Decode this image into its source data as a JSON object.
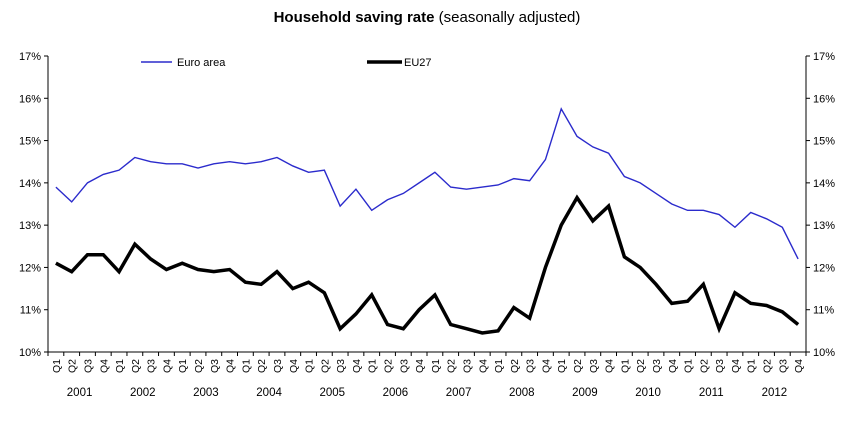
{
  "chart_data": {
    "type": "line",
    "title": "Household saving rate (seasonally adjusted)",
    "title_bold": "Household saving rate",
    "title_suffix": " (seasonally adjusted)",
    "ylim": [
      10,
      17
    ],
    "ytick_step": 1,
    "ytick_suffix": "%",
    "ytick_labels": [
      "10%",
      "11%",
      "12%",
      "13%",
      "14%",
      "15%",
      "16%",
      "17%"
    ],
    "quarters": [
      "Q1",
      "Q2",
      "Q3",
      "Q4"
    ],
    "years": [
      "2001",
      "2002",
      "2003",
      "2004",
      "2005",
      "2006",
      "2007",
      "2008",
      "2009",
      "2010",
      "2011",
      "2012"
    ],
    "grid": false,
    "legend_position": "top-inside",
    "series": [
      {
        "name": "Euro area",
        "color": "#2b2bcc",
        "width": 1.4,
        "values": [
          13.9,
          13.55,
          14.0,
          14.2,
          14.3,
          14.6,
          14.5,
          14.45,
          14.45,
          14.35,
          14.45,
          14.5,
          14.45,
          14.5,
          14.6,
          14.4,
          14.25,
          14.3,
          13.45,
          13.85,
          13.35,
          13.6,
          13.75,
          14.0,
          14.25,
          13.9,
          13.85,
          13.9,
          13.95,
          14.1,
          14.05,
          14.55,
          15.75,
          15.1,
          14.85,
          14.7,
          14.15,
          14.0,
          13.75,
          13.5,
          13.35,
          13.35,
          13.25,
          12.95,
          13.3,
          13.15,
          12.95,
          12.2
        ]
      },
      {
        "name": "EU27",
        "color": "#000000",
        "width": 3.5,
        "values": [
          12.1,
          11.9,
          12.3,
          12.3,
          11.9,
          12.55,
          12.2,
          11.95,
          12.1,
          11.95,
          11.9,
          11.95,
          11.65,
          11.6,
          11.9,
          11.5,
          11.65,
          11.4,
          10.55,
          10.9,
          11.35,
          10.65,
          10.55,
          11.0,
          11.35,
          10.65,
          10.55,
          10.45,
          10.5,
          11.05,
          10.8,
          12.0,
          13.0,
          13.65,
          13.1,
          13.45,
          12.25,
          12.0,
          11.6,
          11.15,
          11.2,
          11.6,
          10.55,
          11.4,
          11.15,
          11.1,
          10.95,
          10.65
        ]
      }
    ]
  }
}
